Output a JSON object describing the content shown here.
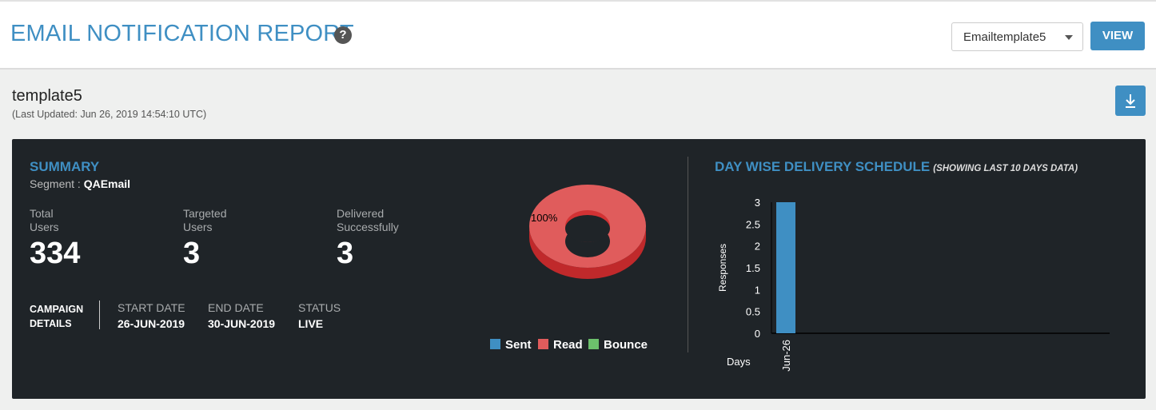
{
  "header": {
    "title": "EMAIL NOTIFICATION REPORT",
    "help_icon": "question-circle-icon",
    "template_select_value": "Emailtemplate5",
    "view_label": "VIEW"
  },
  "report": {
    "name": "template5",
    "last_updated": "(Last Updated: Jun 26, 2019 14:54:10 UTC)",
    "download_icon": "download-icon"
  },
  "summary": {
    "title": "SUMMARY",
    "segment_label": "Segment :",
    "segment_value": "QAEmail",
    "stats": [
      {
        "label_line1": "Total",
        "label_line2": "Users",
        "value": "334"
      },
      {
        "label_line1": "Targeted",
        "label_line2": "Users",
        "value": "3"
      },
      {
        "label_line1": "Delivered",
        "label_line2": "Successfully",
        "value": "3"
      }
    ],
    "campaign_label_line1": "CAMPAIGN",
    "campaign_label_line2": "DETAILS",
    "details": [
      {
        "label": "START DATE",
        "value": "26-JUN-2019"
      },
      {
        "label": "END DATE",
        "value": "30-JUN-2019"
      },
      {
        "label": "STATUS",
        "value": "LIVE"
      }
    ]
  },
  "pie": {
    "label": "100%",
    "legend": [
      {
        "label": "Sent",
        "color": "#3f8fc3"
      },
      {
        "label": "Read",
        "color": "#e05c5c"
      },
      {
        "label": "Bounce",
        "color": "#6cc06c"
      }
    ]
  },
  "delivery": {
    "title": "DAY WISE DELIVERY SCHEDULE",
    "subtitle": "(SHOWING LAST 10 DAYS DATA)"
  },
  "chart_data": [
    {
      "type": "pie",
      "categories": [
        "Sent",
        "Read",
        "Bounce"
      ],
      "values": [
        0,
        100,
        0
      ],
      "data_label": "100%",
      "legend_position": "bottom"
    },
    {
      "type": "bar",
      "categories": [
        "Jun-26"
      ],
      "values": [
        3
      ],
      "xlabel": "Days",
      "ylabel": "Responses",
      "ylim": [
        0,
        3
      ],
      "yticks": [
        "0",
        "0.5",
        "1",
        "1.5",
        "2",
        "2.5",
        "3"
      ],
      "color": "#3f8fc3",
      "grid": false
    }
  ]
}
